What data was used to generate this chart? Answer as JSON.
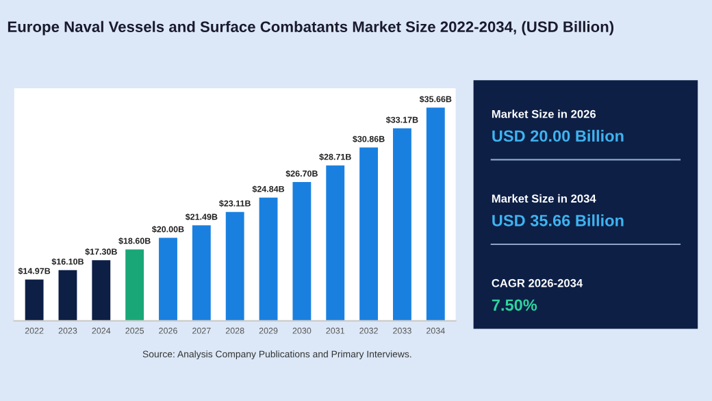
{
  "chart_data": [
    {
      "type": "bar",
      "title": "Europe Naval Vessels and Surface Combatants Market Size 2022-2034, (USD Billion)",
      "categories": [
        "2022",
        "2023",
        "2024",
        "2025",
        "2026",
        "2027",
        "2028",
        "2029",
        "2030",
        "2031",
        "2032",
        "2033",
        "2034"
      ],
      "values": [
        14.97,
        16.1,
        17.3,
        18.6,
        20.0,
        21.49,
        23.11,
        24.84,
        26.7,
        28.71,
        30.86,
        33.17,
        35.66
      ],
      "colors": [
        "#0d1f45",
        "#0d1f45",
        "#0d1f45",
        "#1aa777",
        "#1a80e0",
        "#1a80e0",
        "#1a80e0",
        "#1a80e0",
        "#1a80e0",
        "#1a80e0",
        "#1a80e0",
        "#1a80e0",
        "#1a80e0"
      ],
      "value_labels": [
        "$14.97B",
        "$16.10B",
        "$17.30B",
        "$18.60B",
        "$20.00B",
        "$21.49B",
        "$23.11B",
        "$24.84B",
        "$26.70B",
        "$28.71B",
        "$30.86B",
        "$33.17B",
        "$35.66B"
      ],
      "ylim": [
        10,
        38
      ],
      "tick_labels": "x",
      "grid": false,
      "legend": false,
      "annotations": [
        "Source: Analysis Company Publications and Primary Interviews."
      ]
    },
    {
      "type": "other",
      "annotations": [
        "Market Size in 2026",
        "USD 20.00 Billion",
        "Market Size in 2034",
        "USD 35.66 Billion",
        "CAGR 2026-2034",
        "7.50%"
      ]
    }
  ]
}
